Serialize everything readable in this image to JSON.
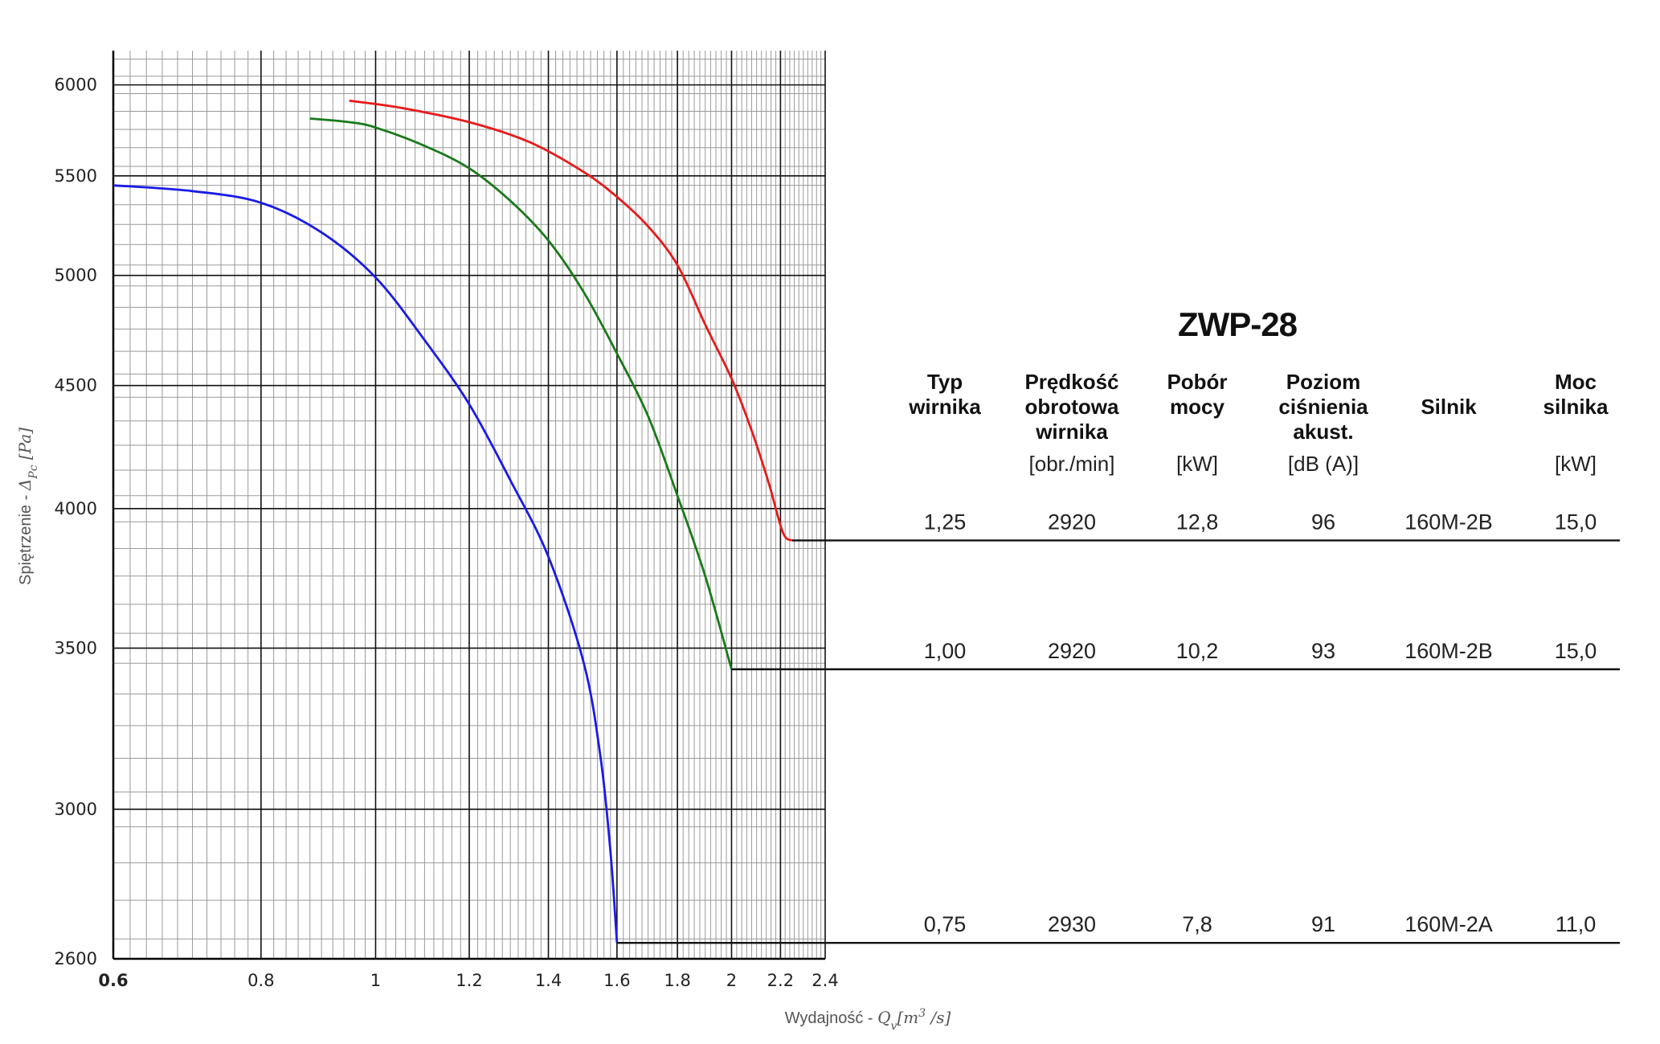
{
  "chart_data": {
    "type": "line",
    "title": "ZWP-28",
    "xlabel": "Wydajność - Q_v [m^3 /s]",
    "xlabel_parts": {
      "text": "Wydajność - ",
      "symbol": "Q",
      "sub": "v",
      "unit": "[m",
      "sup": "3",
      "unit_end": " /s]"
    },
    "ylabel": "Spiętrzenie - Δ_Pc [Pa]",
    "ylabel_parts": {
      "text": "Spiętrzenie - ",
      "symbol": "Δ",
      "sub": "Pc",
      "unit": " [Pa]"
    },
    "x_scale": "log",
    "y_scale": "log",
    "xlim": [
      0.6,
      2.4
    ],
    "ylim": [
      2600,
      6200
    ],
    "x_ticks": [
      0.6,
      0.8,
      1,
      1.2,
      1.4,
      1.6,
      1.8,
      2,
      2.2,
      2.4
    ],
    "x_tick_labels": [
      "0.6",
      "0.8",
      "1",
      "1.2",
      "1.4",
      "1.6",
      "1.8",
      "2",
      "2.2",
      "2.4"
    ],
    "y_ticks": [
      2600,
      3000,
      3500,
      4000,
      4500,
      5000,
      5500,
      6000
    ],
    "y_tick_labels": [
      "2600",
      "3000",
      "3500",
      "4000",
      "4500",
      "5000",
      "5500",
      "6000"
    ],
    "grid": true,
    "series": [
      {
        "color": "#e81a1a",
        "x": [
          0.95,
          1.05,
          1.2,
          1.35,
          1.5,
          1.6,
          1.7,
          1.8,
          1.9,
          2.0,
          2.08,
          2.15,
          2.21,
          2.25
        ],
        "y": [
          5910,
          5870,
          5790,
          5680,
          5520,
          5390,
          5240,
          5050,
          4770,
          4530,
          4310,
          4100,
          3910,
          3880
        ]
      },
      {
        "color": "#1a7a1a",
        "x": [
          0.88,
          0.95,
          1.0,
          1.1,
          1.2,
          1.3,
          1.4,
          1.5,
          1.6,
          1.7,
          1.8,
          1.9,
          2.0
        ],
        "y": [
          5810,
          5790,
          5760,
          5660,
          5540,
          5370,
          5170,
          4920,
          4640,
          4370,
          4050,
          3750,
          3430
        ]
      },
      {
        "color": "#1a1ae8",
        "x": [
          0.6,
          0.7,
          0.8,
          0.9,
          1.0,
          1.1,
          1.2,
          1.3,
          1.4,
          1.5,
          1.55,
          1.58,
          1.6
        ],
        "y": [
          5450,
          5420,
          5360,
          5210,
          4990,
          4700,
          4420,
          4110,
          3820,
          3450,
          3150,
          2880,
          2640
        ]
      }
    ],
    "table": {
      "columns": [
        {
          "header": [
            "Typ",
            "wirnika"
          ],
          "unit": ""
        },
        {
          "header": [
            "Prędkość",
            "obrotowa",
            "wirnika"
          ],
          "unit": "[obr./min]"
        },
        {
          "header": [
            "Pobór",
            "mocy"
          ],
          "unit": "[kW]"
        },
        {
          "header": [
            "Poziom",
            "ciśnienia",
            "akust."
          ],
          "unit": "[dB (A)]"
        },
        {
          "header": [
            "Silnik"
          ],
          "unit": ""
        },
        {
          "header": [
            "Moc",
            "silnika"
          ],
          "unit": "[kW]"
        }
      ],
      "rows": [
        {
          "series_index": 0,
          "end_pressure": 3880,
          "cells": [
            "1,25",
            "2920",
            "12,8",
            "96",
            "160M-2B",
            "15,0"
          ]
        },
        {
          "series_index": 1,
          "end_pressure": 3430,
          "cells": [
            "1,00",
            "2920",
            "10,2",
            "93",
            "160M-2B",
            "15,0"
          ]
        },
        {
          "series_index": 2,
          "end_pressure": 2640,
          "cells": [
            "0,75",
            "2930",
            "7,8",
            "91",
            "160M-2A",
            "11,0"
          ]
        }
      ]
    }
  }
}
